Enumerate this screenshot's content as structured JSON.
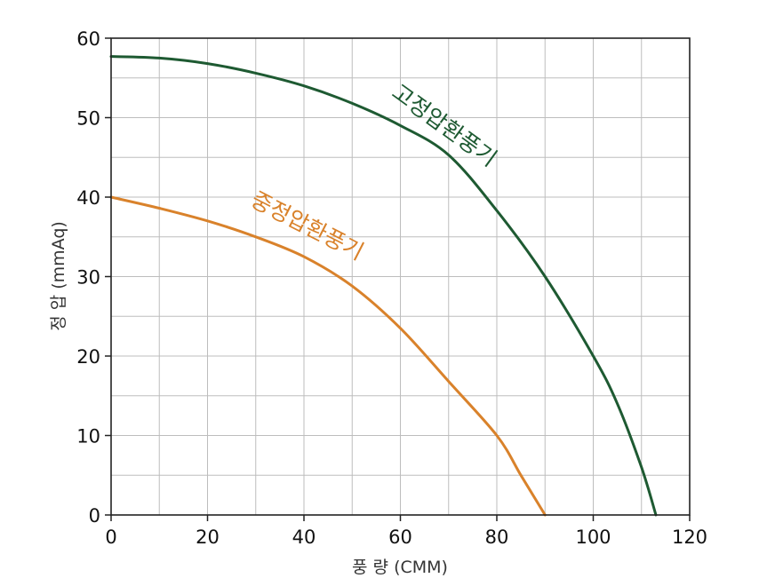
{
  "chart_data": {
    "type": "line",
    "title": "",
    "xlabel": "풍 량 (CMM)",
    "ylabel": "정 압 (mmAq)",
    "xlim": [
      0,
      120
    ],
    "ylim": [
      0,
      60
    ],
    "x_ticks": [
      "0",
      "20",
      "40",
      "60",
      "80",
      "100",
      "120"
    ],
    "y_ticks": [
      "0",
      "10",
      "20",
      "30",
      "40",
      "50",
      "60"
    ],
    "grid": true,
    "series": [
      {
        "name": "고정압환풍기",
        "color": "#1e5a32",
        "points": [
          [
            0,
            57.7
          ],
          [
            10,
            57.5
          ],
          [
            20,
            56.8
          ],
          [
            30,
            55.6
          ],
          [
            40,
            54.0
          ],
          [
            50,
            51.8
          ],
          [
            60,
            49.0
          ],
          [
            70,
            45.3
          ],
          [
            80,
            38.3
          ],
          [
            90,
            30.0
          ],
          [
            100,
            20.0
          ],
          [
            105,
            14.0
          ],
          [
            110,
            6.0
          ],
          [
            113,
            0
          ]
        ]
      },
      {
        "name": "중정압환풍기",
        "color": "#d9822b",
        "points": [
          [
            0,
            40.0
          ],
          [
            10,
            38.6
          ],
          [
            20,
            37.0
          ],
          [
            30,
            35.0
          ],
          [
            40,
            32.5
          ],
          [
            50,
            28.8
          ],
          [
            60,
            23.5
          ],
          [
            70,
            16.8
          ],
          [
            80,
            10.0
          ],
          [
            85,
            5.0
          ],
          [
            90,
            0
          ]
        ]
      }
    ]
  }
}
